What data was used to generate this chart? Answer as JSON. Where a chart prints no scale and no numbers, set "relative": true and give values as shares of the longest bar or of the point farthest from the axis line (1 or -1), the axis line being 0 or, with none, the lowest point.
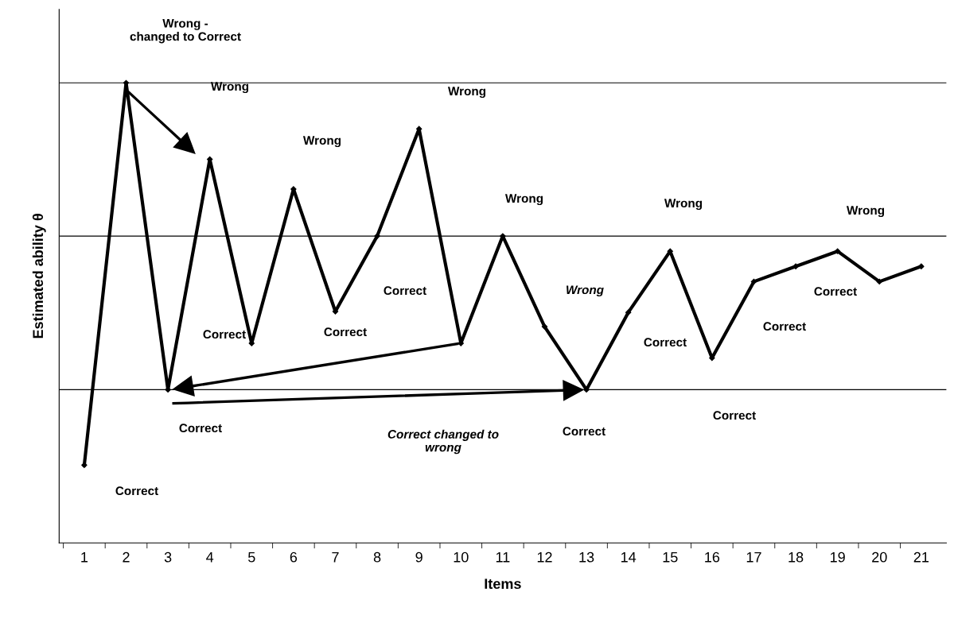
{
  "chart_data": {
    "type": "line",
    "relative": true,
    "xlabel": "Items",
    "ylabel": "Estimated ability θ",
    "categories": [
      "1",
      "2",
      "3",
      "4",
      "5",
      "6",
      "7",
      "8",
      "9",
      "10",
      "11",
      "12",
      "13",
      "14",
      "15",
      "16",
      "17",
      "18",
      "19",
      "20",
      "21"
    ],
    "series": [
      {
        "color": "#000000",
        "values": [
          0.169,
          1.0,
          0.333,
          0.834,
          0.434,
          0.769,
          0.503,
          0.667,
          0.9,
          0.434,
          0.667,
          0.47,
          0.333,
          0.501,
          0.634,
          0.402,
          0.568,
          0.601,
          0.634,
          0.568,
          0.601
        ]
      }
    ],
    "marker": "diamond",
    "line_style": "solid",
    "ref_lines": [
      {
        "axis": "y",
        "value": 1.0,
        "color": "#000000"
      },
      {
        "axis": "y",
        "value": 0.667,
        "color": "#000000"
      },
      {
        "axis": "y",
        "value": 0.333,
        "color": "#000000"
      }
    ],
    "annotations": [
      "Wrong -\nchanged to Correct",
      "Wrong",
      "Wrong",
      "Wrong",
      "Wrong",
      "Wrong",
      "Wrong",
      "Wrong",
      "Correct",
      "Correct",
      "Correct",
      "Correct",
      "Correct",
      "Correct changed to\nwrong",
      "Correct",
      "Correct",
      "Correct",
      "Correct",
      "Correct"
    ]
  }
}
